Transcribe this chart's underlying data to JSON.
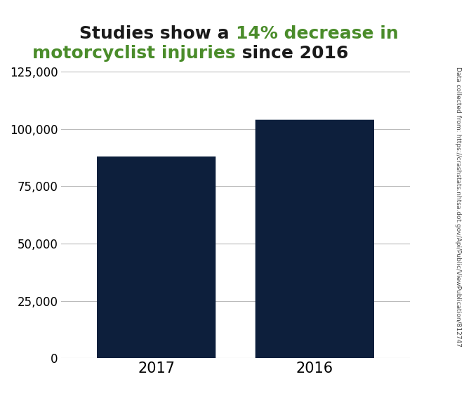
{
  "categories": [
    "2017",
    "2016"
  ],
  "values": [
    88000,
    104000
  ],
  "bar_color": "#0d1f3c",
  "title_fontsize": 18,
  "ylim": [
    0,
    125000
  ],
  "yticks": [
    0,
    25000,
    50000,
    75000,
    100000,
    125000
  ],
  "ytick_labels": [
    "0",
    "25,000",
    "50,000",
    "75,000",
    "100,000",
    "125,000"
  ],
  "green_color": "#4a8c2a",
  "black_color": "#1a1a1a",
  "bg_color": "#ffffff",
  "grid_color": "#bbbbbb",
  "source_text": "Data collected from: https://crashstats.nhtsa.dot.gov/Api/Public/ViewPublication/812747",
  "bar_width": 0.75
}
